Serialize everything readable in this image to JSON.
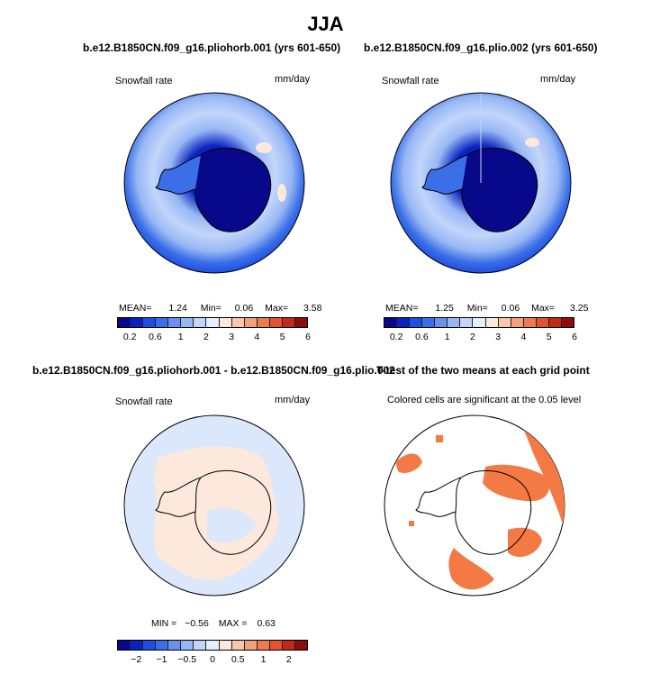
{
  "main_title": "JJA",
  "panels": [
    {
      "title": "b.e12.B1850CN.f09_g16.pliohorb.001 (yrs 601-650)",
      "variable": "Snowfall rate",
      "units": "mm/day",
      "stats": {
        "mean_label": "MEAN=",
        "mean": "1.24",
        "min_label": "Min=",
        "min": "0.06",
        "max_label": "Max=",
        "max": "3.58"
      },
      "colorbar_labels": [
        "0.2",
        "0.6",
        "1",
        "2",
        "3",
        "4",
        "5",
        "6"
      ]
    },
    {
      "title": "b.e12.B1850CN.f09_g16.plio.002 (yrs 601-650)",
      "variable": "Snowfall rate",
      "units": "mm/day",
      "stats": {
        "mean_label": "MEAN=",
        "mean": "1.25",
        "min_label": "Min=",
        "min": "0.06",
        "max_label": "Max=",
        "max": "3.25"
      },
      "colorbar_labels": [
        "0.2",
        "0.6",
        "1",
        "2",
        "3",
        "4",
        "5",
        "6"
      ]
    },
    {
      "title": "b.e12.B1850CN.f09_g16.pliohorb.001 - b.e12.B1850CN.f09_g16.plio.002",
      "variable": "Snowfall rate",
      "units": "mm/day",
      "stats": {
        "min_label": "MIN =",
        "min": "−0.56",
        "max_label": "MAX =",
        "max": "0.63"
      },
      "colorbar_labels": [
        "−2",
        "−1",
        "−0.5",
        "0",
        "0.5",
        "1",
        "2"
      ]
    },
    {
      "title": "T-test of the two means at each grid point",
      "subtitle": "Colored cells are significant at the 0.05 level"
    }
  ],
  "colors": {
    "snow_scale": [
      "#08088a",
      "#0a23c0",
      "#1e4fe0",
      "#3a6fe8",
      "#6892ee",
      "#97b7f4",
      "#c3d6fa",
      "#e4eefd",
      "#fde8dc",
      "#f9c8ac",
      "#f4a07a",
      "#ee7a50",
      "#e4522e",
      "#c22a18",
      "#8e0c0c"
    ],
    "diff_scale": [
      "#08088a",
      "#0a23c0",
      "#1e4fe0",
      "#3a6fe8",
      "#6892ee",
      "#97b7f4",
      "#c3d6fa",
      "#e4eefd",
      "#fde8dc",
      "#f9c8ac",
      "#f4a07a",
      "#ee7a50",
      "#e4522e",
      "#c22a18",
      "#8e0c0c"
    ],
    "significant": "#f47a45"
  }
}
